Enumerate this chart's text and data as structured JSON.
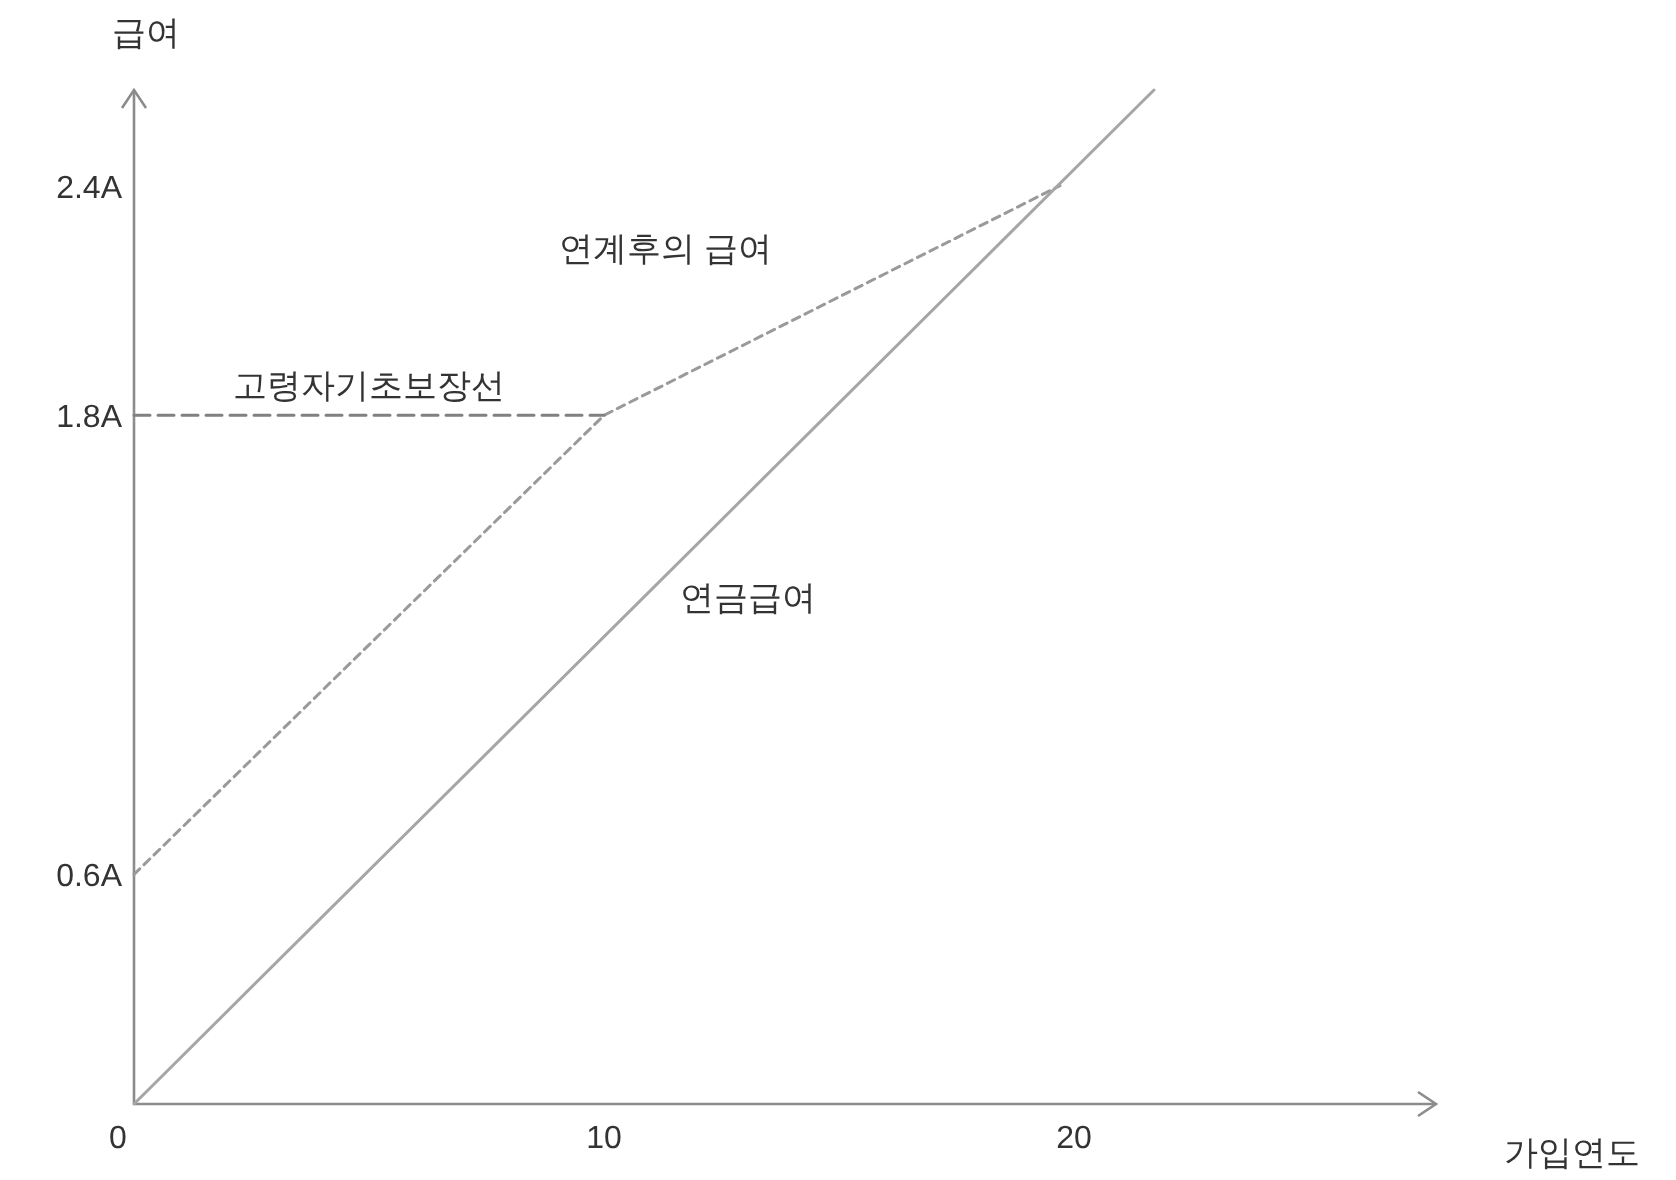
{
  "chart_data": {
    "type": "line",
    "xlabel": "가입연도",
    "ylabel": "급여",
    "xlim": [
      0,
      27.7
    ],
    "ylim": [
      0,
      2.65
    ],
    "xticks": [
      0,
      10,
      20
    ],
    "yticks": [
      {
        "value": 0.6,
        "label": "0.6A"
      },
      {
        "value": 1.8,
        "label": "1.8A"
      },
      {
        "value": 2.4,
        "label": "2.4A"
      }
    ],
    "grid": false,
    "legend": false,
    "marker": "none",
    "series": [
      {
        "name": "연계후의 급여",
        "color": "#9a9a9a",
        "line_style": "dotted",
        "x": [
          0,
          10,
          19.7
        ],
        "values": [
          0.6,
          1.8,
          2.4
        ]
      },
      {
        "name": "연금급여",
        "color": "#a6a6a6",
        "line_style": "solid",
        "x": [
          0,
          21.7
        ],
        "values": [
          0,
          2.65
        ]
      },
      {
        "name": "고령자기초보장선",
        "color": "#808080",
        "line_style": "dashed",
        "x": [
          0,
          10
        ],
        "values": [
          1.8,
          1.8
        ]
      }
    ]
  }
}
